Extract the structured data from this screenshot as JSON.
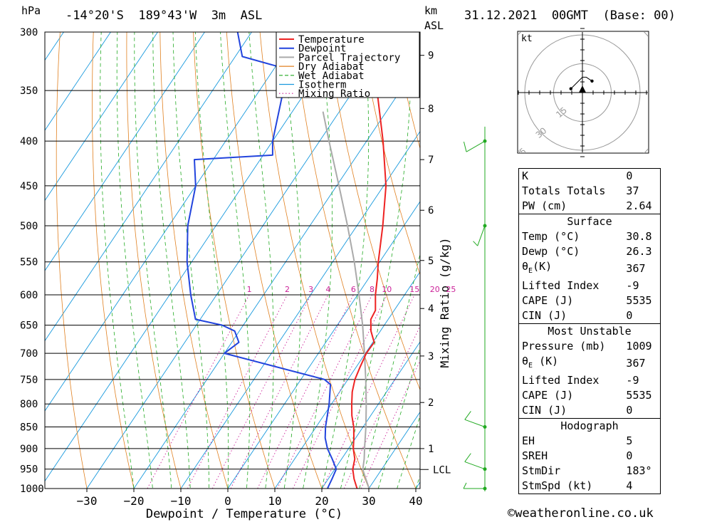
{
  "header": {
    "pressure_unit": "hPa",
    "location": "-14°20'S  189°43'W  3m  ASL",
    "height_unit_line1": "km",
    "height_unit_line2": "ASL",
    "datetime": "31.12.2021  00GMT  (Base: 00)"
  },
  "chart_data": {
    "type": "skew-t",
    "xlabel": "Dewpoint / Temperature (°C)",
    "ylabel_right": "Mixing Ratio (g/kg)",
    "x_ticks": [
      -30,
      -20,
      -10,
      0,
      10,
      20,
      30,
      40
    ],
    "x_tick_labels": [
      "−30",
      "−20",
      "−10",
      "0",
      "10",
      "20",
      "30",
      "40"
    ],
    "pressure_levels": [
      300,
      350,
      400,
      450,
      500,
      550,
      600,
      650,
      700,
      750,
      800,
      850,
      900,
      950,
      1000
    ],
    "pressure_labels": [
      "300",
      "350",
      "400",
      "450",
      "500",
      "550",
      "600",
      "650",
      "700",
      "750",
      "800",
      "850",
      "900",
      "950",
      "1000"
    ],
    "km_ticks": [
      {
        "km": 1,
        "p": 900
      },
      {
        "km": 2,
        "p": 797
      },
      {
        "km": 3,
        "p": 705
      },
      {
        "km": 4,
        "p": 622
      },
      {
        "km": 5,
        "p": 548
      },
      {
        "km": 6,
        "p": 480
      },
      {
        "km": 7,
        "p": 420
      },
      {
        "km": 8,
        "p": 367
      },
      {
        "km": 9,
        "p": 319
      }
    ],
    "km_labels": [
      "1",
      "2",
      "3",
      "4",
      "5",
      "6",
      "7",
      "8",
      "9"
    ],
    "lcl": {
      "label": "LCL",
      "p": 951
    },
    "mixing_ratios": [
      1,
      2,
      3,
      4,
      6,
      8,
      10,
      15,
      20,
      25
    ],
    "mixing_ratio_labels": [
      "1",
      "2",
      "3",
      "4",
      "6",
      "8",
      "10",
      "15",
      "20",
      "25"
    ],
    "legend": [
      "Temperature",
      "Dewpoint",
      "Parcel Trajectory",
      "Dry Adiabat",
      "Wet Adiabat",
      "Isotherm",
      "Mixing Ratio"
    ],
    "colors": {
      "temperature": "#ee2222",
      "dewpoint": "#2244dd",
      "parcel": "#aaaaaa",
      "dry_adiabat": "#e08020",
      "wet_adiabat": "#22aa22",
      "isotherm": "#1899dd",
      "mixing_ratio": "#cc2299"
    },
    "temperature": [
      [
        1009,
        30.8
      ],
      [
        1000,
        27.5
      ],
      [
        975,
        25.5
      ],
      [
        950,
        23.8
      ],
      [
        925,
        22.8
      ],
      [
        900,
        21.0
      ],
      [
        875,
        19.6
      ],
      [
        850,
        18.0
      ],
      [
        825,
        16.0
      ],
      [
        800,
        14.3
      ],
      [
        775,
        12.7
      ],
      [
        750,
        11.5
      ],
      [
        725,
        10.8
      ],
      [
        700,
        10.2
      ],
      [
        680,
        10.3
      ],
      [
        660,
        8.0
      ],
      [
        640,
        6.3
      ],
      [
        625,
        6.0
      ],
      [
        600,
        3.8
      ],
      [
        575,
        1.9
      ],
      [
        550,
        -0.3
      ],
      [
        500,
        -4.5
      ],
      [
        450,
        -9.5
      ],
      [
        400,
        -16.5
      ],
      [
        350,
        -25.0
      ],
      [
        320,
        -31.5
      ],
      [
        300,
        -35.5
      ]
    ],
    "dewpoint": [
      [
        1009,
        26.3
      ],
      [
        1000,
        21.2
      ],
      [
        975,
        20.8
      ],
      [
        950,
        20.3
      ],
      [
        925,
        18.0
      ],
      [
        900,
        15.5
      ],
      [
        875,
        13.5
      ],
      [
        850,
        12.0
      ],
      [
        800,
        9.5
      ],
      [
        760,
        7.0
      ],
      [
        750,
        5.0
      ],
      [
        700,
        -20.0
      ],
      [
        680,
        -18.5
      ],
      [
        660,
        -21.0
      ],
      [
        650,
        -24.5
      ],
      [
        640,
        -31.0
      ],
      [
        600,
        -35.5
      ],
      [
        550,
        -41.0
      ],
      [
        500,
        -46.0
      ],
      [
        450,
        -50.0
      ],
      [
        420,
        -54.0
      ],
      [
        415,
        -38.0
      ],
      [
        400,
        -40.0
      ],
      [
        340,
        -46.0
      ],
      [
        330,
        -48.0
      ],
      [
        320,
        -58.5
      ],
      [
        300,
        -63.0
      ]
    ],
    "parcel": [
      [
        1009,
        30.8
      ],
      [
        975,
        28.0
      ],
      [
        951,
        26.0
      ],
      [
        925,
        24.8
      ],
      [
        900,
        23.4
      ],
      [
        850,
        20.6
      ],
      [
        800,
        17.4
      ],
      [
        750,
        13.8
      ],
      [
        700,
        9.8
      ],
      [
        650,
        5.4
      ],
      [
        600,
        0.3
      ],
      [
        550,
        -5.4
      ],
      [
        500,
        -12.0
      ],
      [
        450,
        -19.5
      ],
      [
        400,
        -28.0
      ],
      [
        370,
        -33.5
      ]
    ],
    "wind_barbs": [
      {
        "p": 1000,
        "dir": 270,
        "speed": 5
      },
      {
        "p": 950,
        "dir": 290,
        "speed": 10
      },
      {
        "p": 850,
        "dir": 290,
        "speed": 10
      },
      {
        "p": 500,
        "dir": 200,
        "speed": 5
      },
      {
        "p": 400,
        "dir": 240,
        "speed": 10
      }
    ],
    "hodograph": {
      "unit": "kt",
      "rings": [
        15,
        30,
        45
      ],
      "ring_labels": [
        "15",
        "30",
        "45"
      ],
      "points": [
        [
          -6,
          2
        ],
        [
          -3,
          5
        ],
        [
          0,
          8
        ],
        [
          2,
          8
        ],
        [
          5,
          6
        ]
      ]
    }
  },
  "indices": {
    "k_label": "K",
    "k_value": "0",
    "tt_label": "Totals Totals",
    "tt_value": "37",
    "pw_label": "PW (cm)",
    "pw_value": "2.64",
    "surface_title": "Surface",
    "s_temp_label": "Temp (°C)",
    "s_temp_value": "30.8",
    "s_dewp_label": "Dewp (°C)",
    "s_dewp_value": "26.3",
    "s_theta_sym": "θ",
    "s_theta_sub": "E",
    "s_theta_unit": "(K)",
    "s_theta_value": "367",
    "s_li_label": "Lifted Index",
    "s_li_value": "-9",
    "s_cape_label": "CAPE (J)",
    "s_cape_value": "5535",
    "s_cin_label": "CIN (J)",
    "s_cin_value": "0",
    "mu_title": "Most Unstable",
    "mu_pres_label": "Pressure (mb)",
    "mu_pres_value": "1009",
    "mu_theta_sym": "θ",
    "mu_theta_sub": "E",
    "mu_theta_unit": "(K)",
    "mu_theta_value": "367",
    "mu_li_label": "Lifted Index",
    "mu_li_value": "-9",
    "mu_cape_label": "CAPE (J)",
    "mu_cape_value": "5535",
    "mu_cin_label": "CIN (J)",
    "mu_cin_value": "0",
    "hodo_title": "Hodograph",
    "eh_label": "EH",
    "eh_value": "5",
    "sreh_label": "SREH",
    "sreh_value": "0",
    "stmdir_label": "StmDir",
    "stmdir_value": "183°",
    "stmspd_label": "StmSpd (kt)",
    "stmspd_value": "4"
  },
  "footer": {
    "copyright_symbol": "©",
    "site": "weatheronline.co.uk"
  }
}
